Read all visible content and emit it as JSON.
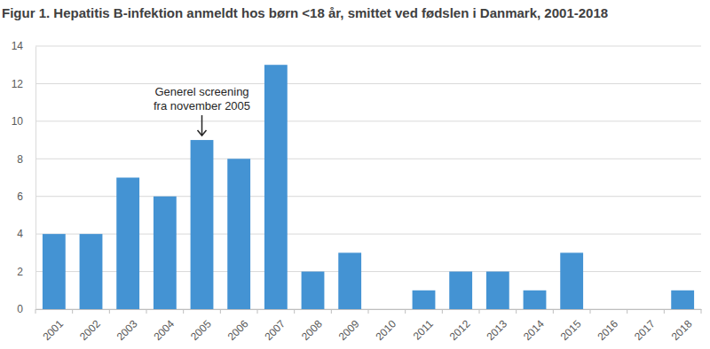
{
  "chart_data": {
    "type": "bar",
    "title": "Figur 1. Hepatitis B-infektion anmeldt hos børn <18 år, smittet ved fødslen i Danmark, 2001-2018",
    "categories": [
      "2001",
      "2002",
      "2003",
      "2004",
      "2005",
      "2006",
      "2007",
      "2008",
      "2009",
      "2010",
      "2011",
      "2012",
      "2013",
      "2014",
      "2015",
      "2016",
      "2017",
      "2018"
    ],
    "values": [
      4,
      4,
      7,
      6,
      9,
      8,
      13,
      2,
      3,
      0,
      1,
      2,
      2,
      1,
      3,
      0,
      0,
      1
    ],
    "color": "#4493d3",
    "ylim": [
      0,
      14
    ],
    "yticks": [
      0,
      2,
      4,
      6,
      8,
      10,
      12,
      14
    ],
    "grid": true,
    "annotations": [
      {
        "text": [
          "Generel screening",
          "fra november 2005"
        ],
        "x": "2005"
      }
    ]
  }
}
